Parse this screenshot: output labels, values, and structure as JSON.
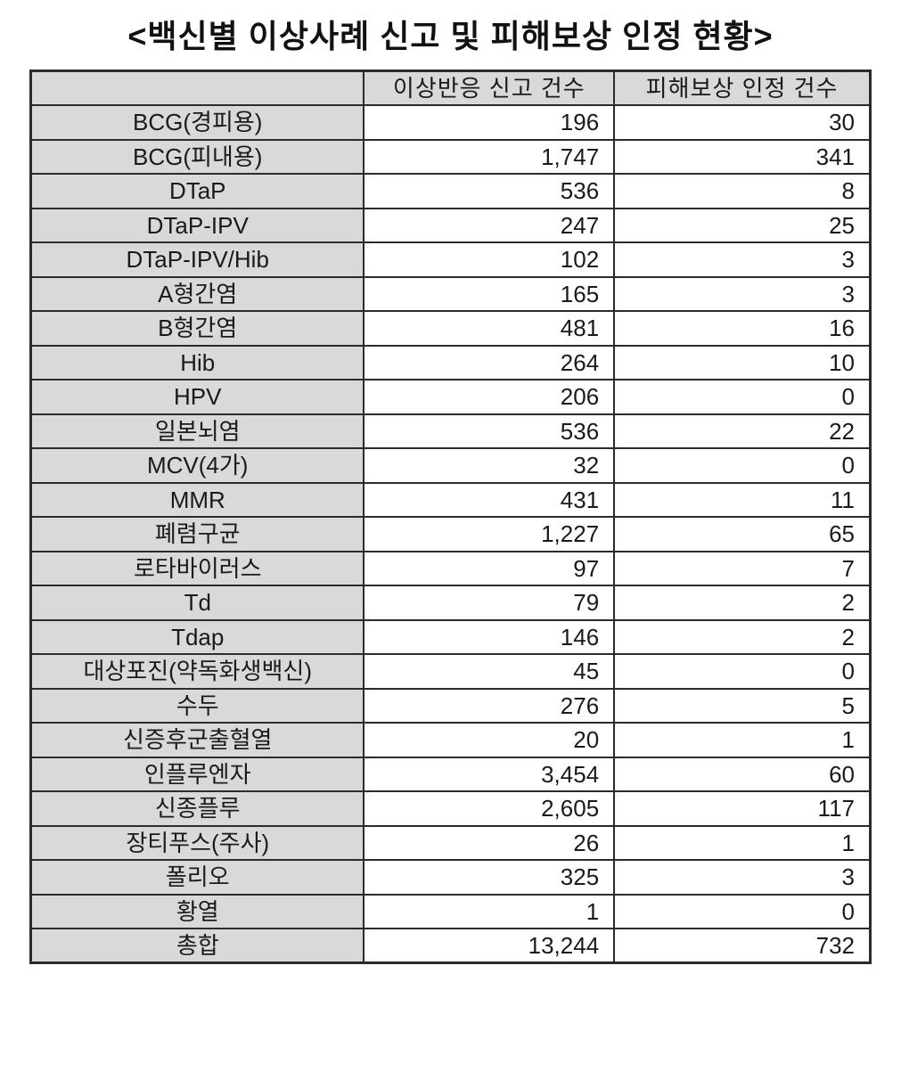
{
  "title": "<백신별 이상사례 신고 및 피해보상 인정 현황>",
  "table": {
    "headers": [
      "",
      "이상반응 신고 건수",
      "피해보상 인정 건수"
    ],
    "rows": [
      [
        "BCG(경피용)",
        "196",
        "30"
      ],
      [
        "BCG(피내용)",
        "1,747",
        "341"
      ],
      [
        "DTaP",
        "536",
        "8"
      ],
      [
        "DTaP-IPV",
        "247",
        "25"
      ],
      [
        "DTaP-IPV/Hib",
        "102",
        "3"
      ],
      [
        "A형간염",
        "165",
        "3"
      ],
      [
        "B형간염",
        "481",
        "16"
      ],
      [
        "Hib",
        "264",
        "10"
      ],
      [
        "HPV",
        "206",
        "0"
      ],
      [
        "일본뇌염",
        "536",
        "22"
      ],
      [
        "MCV(4가)",
        "32",
        "0"
      ],
      [
        "MMR",
        "431",
        "11"
      ],
      [
        "폐렴구균",
        "1,227",
        "65"
      ],
      [
        "로타바이러스",
        "97",
        "7"
      ],
      [
        "Td",
        "79",
        "2"
      ],
      [
        "Tdap",
        "146",
        "2"
      ],
      [
        "대상포진(약독화생백신)",
        "45",
        "0"
      ],
      [
        "수두",
        "276",
        "5"
      ],
      [
        "신증후군출혈열",
        "20",
        "1"
      ],
      [
        "인플루엔자",
        "3,454",
        "60"
      ],
      [
        "신종플루",
        "2,605",
        "117"
      ],
      [
        "장티푸스(주사)",
        "26",
        "1"
      ],
      [
        "폴리오",
        "325",
        "3"
      ],
      [
        "황열",
        "1",
        "0"
      ],
      [
        "총합",
        "13,244",
        "732"
      ]
    ]
  },
  "colors": {
    "header_bg": "#d9d9d9",
    "label_bg": "#d9d9d9",
    "border": "#2b2b2b",
    "text": "#1a1a1a",
    "background": "#ffffff"
  }
}
